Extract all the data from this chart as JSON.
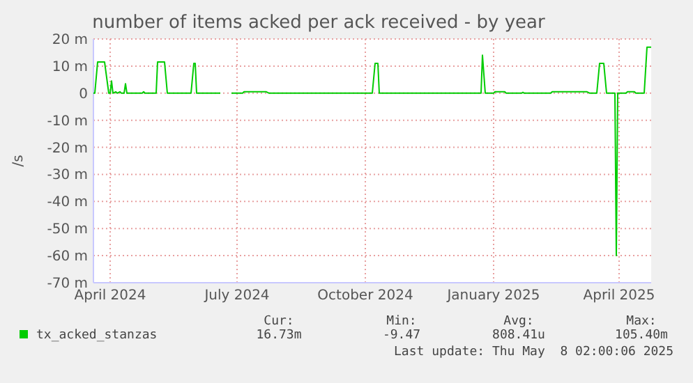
{
  "chart_data": {
    "type": "line",
    "title": "number of items acked per ack received - by year",
    "ylabel": "/s",
    "x": [
      "2024-03-20",
      "2024-03-21",
      "2024-03-23",
      "2024-03-28",
      "2024-03-31",
      "2024-04-01",
      "2024-04-02",
      "2024-04-03",
      "2024-04-05",
      "2024-04-06",
      "2024-04-08",
      "2024-04-09",
      "2024-04-11",
      "2024-04-12",
      "2024-04-13",
      "2024-04-24",
      "2024-04-25",
      "2024-04-26",
      "2024-05-04",
      "2024-05-05",
      "2024-05-10",
      "2024-05-12",
      "2024-05-29",
      "2024-05-31",
      "2024-06-01",
      "2024-06-02",
      "2024-06-19",
      "2024-06-23",
      "2024-06-27",
      "2024-07-05",
      "2024-07-06",
      "2024-07-22",
      "2024-07-24",
      "2024-10-06",
      "2024-10-08",
      "2024-10-10",
      "2024-10-11",
      "2024-12-23",
      "2024-12-24",
      "2024-12-26",
      "2025-01-01",
      "2025-01-02",
      "2025-01-09",
      "2025-01-10",
      "2025-01-21",
      "2025-01-22",
      "2025-01-23",
      "2025-02-11",
      "2025-02-12",
      "2025-03-09",
      "2025-03-11",
      "2025-03-16",
      "2025-03-18",
      "2025-03-21",
      "2025-03-23",
      "2025-03-29",
      "2025-03-30",
      "2025-03-31",
      "2025-04-06",
      "2025-04-07",
      "2025-04-12",
      "2025-04-13",
      "2025-04-19",
      "2025-04-21",
      "2025-04-24"
    ],
    "series": [
      {
        "name": "tx_acked_stanzas",
        "color": "#00cc00",
        "values": [
          0,
          0,
          11.5,
          11.5,
          0,
          0,
          4.5,
          0,
          0.5,
          0,
          0.5,
          0,
          0,
          3.5,
          0,
          0,
          0.5,
          0,
          0,
          11.5,
          11.5,
          0,
          0,
          11,
          11,
          0,
          0,
          null,
          0,
          0,
          0.5,
          0.5,
          0,
          0,
          11,
          11,
          0,
          0,
          14,
          0,
          0,
          0.5,
          0.5,
          0,
          0,
          0.3,
          0,
          0,
          0.5,
          0.5,
          0,
          0,
          11,
          11,
          0,
          0,
          -60,
          0,
          0,
          0.5,
          0.5,
          0,
          0,
          17,
          17
        ]
      }
    ],
    "xlim": [
      "2024-03-20",
      "2025-04-24"
    ],
    "xticks": [
      {
        "value": "2024-04-01",
        "label": "April 2024"
      },
      {
        "value": "2024-07-01",
        "label": "July 2024"
      },
      {
        "value": "2024-10-01",
        "label": "October 2024"
      },
      {
        "value": "2025-01-01",
        "label": "January 2025"
      },
      {
        "value": "2025-04-01",
        "label": "April 2025"
      }
    ],
    "ylim": [
      -70,
      20
    ],
    "yticks": [
      {
        "value": 20,
        "label": "20 m"
      },
      {
        "value": 10,
        "label": "10 m"
      },
      0,
      {
        "value": -10,
        "label": "-10 m"
      },
      {
        "value": -20,
        "label": "-20 m"
      },
      {
        "value": -30,
        "label": "-30 m"
      },
      {
        "value": -40,
        "label": "-40 m"
      },
      {
        "value": -50,
        "label": "-50 m"
      },
      {
        "value": -60,
        "label": "-60 m"
      },
      {
        "value": -70,
        "label": "-70 m"
      }
    ],
    "grid": true,
    "legend": "bottom",
    "marker": "none",
    "line_style": "solid",
    "annotations": [
      "Cur:",
      "Min:",
      "Avg:",
      "Max:",
      "16.73m",
      "-9.47",
      "808.41u",
      "105.40m",
      "Last update: Thu May  8 02:00:06 2025"
    ]
  }
}
